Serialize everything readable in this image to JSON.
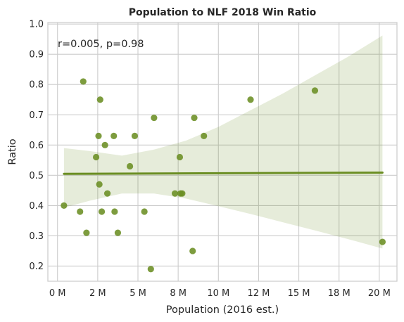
{
  "chart_data": {
    "type": "scatter",
    "title": "Population to NLF 2018 Win Ratio",
    "xlabel": "Population (2016 est.)",
    "ylabel": "Ratio",
    "annotation": "r=0.005, p=0.98",
    "xlim": [
      -0.6,
      21.1
    ],
    "ylim": [
      0.15,
      1.005
    ],
    "x_ticks": [
      0,
      2.5,
      5,
      7.5,
      10,
      12.5,
      15,
      17.5,
      20
    ],
    "x_tick_labels": [
      "0 M",
      "2 M",
      "5 M",
      "8 M",
      "10 M",
      "12 M",
      "15 M",
      "18 M",
      "20 M"
    ],
    "y_ticks": [
      0.2,
      0.3,
      0.4,
      0.5,
      0.6,
      0.7,
      0.8,
      0.9,
      1.0
    ],
    "y_tick_labels": [
      "0.2",
      "0.3",
      "0.4",
      "0.5",
      "0.6",
      "0.7",
      "0.8",
      "0.9",
      "1.0"
    ],
    "grid": true,
    "colors": {
      "points": "#6b8e23",
      "line": "#6b8e23",
      "band": "#6b8e23",
      "grid": "#cccccc",
      "frame": "#cccccc"
    },
    "points": [
      {
        "x": 0.4,
        "y": 0.4
      },
      {
        "x": 1.4,
        "y": 0.38
      },
      {
        "x": 1.6,
        "y": 0.81
      },
      {
        "x": 1.8,
        "y": 0.31
      },
      {
        "x": 2.4,
        "y": 0.56
      },
      {
        "x": 2.55,
        "y": 0.63
      },
      {
        "x": 2.6,
        "y": 0.47
      },
      {
        "x": 2.65,
        "y": 0.75
      },
      {
        "x": 2.75,
        "y": 0.38
      },
      {
        "x": 2.95,
        "y": 0.6
      },
      {
        "x": 3.1,
        "y": 0.44
      },
      {
        "x": 3.5,
        "y": 0.63
      },
      {
        "x": 3.55,
        "y": 0.38
      },
      {
        "x": 3.75,
        "y": 0.31
      },
      {
        "x": 4.5,
        "y": 0.53
      },
      {
        "x": 4.8,
        "y": 0.63
      },
      {
        "x": 5.4,
        "y": 0.38
      },
      {
        "x": 5.8,
        "y": 0.19
      },
      {
        "x": 6.0,
        "y": 0.69
      },
      {
        "x": 7.3,
        "y": 0.44
      },
      {
        "x": 7.6,
        "y": 0.56
      },
      {
        "x": 7.65,
        "y": 0.44
      },
      {
        "x": 7.75,
        "y": 0.44
      },
      {
        "x": 8.4,
        "y": 0.25
      },
      {
        "x": 8.5,
        "y": 0.69
      },
      {
        "x": 9.1,
        "y": 0.63
      },
      {
        "x": 12.0,
        "y": 0.75
      },
      {
        "x": 16.0,
        "y": 0.78
      },
      {
        "x": 20.2,
        "y": 0.28
      }
    ],
    "regression": {
      "x": [
        0.4,
        20.2
      ],
      "y": [
        0.505,
        0.509
      ]
    },
    "confidence_band": [
      {
        "x": 0.4,
        "lower": 0.393,
        "upper": 0.59
      },
      {
        "x": 2.0,
        "lower": 0.416,
        "upper": 0.58
      },
      {
        "x": 4.0,
        "lower": 0.44,
        "upper": 0.565
      },
      {
        "x": 6.0,
        "lower": 0.44,
        "upper": 0.585
      },
      {
        "x": 8.0,
        "lower": 0.423,
        "upper": 0.615
      },
      {
        "x": 10.0,
        "lower": 0.398,
        "upper": 0.66
      },
      {
        "x": 12.0,
        "lower": 0.372,
        "upper": 0.715
      },
      {
        "x": 14.0,
        "lower": 0.345,
        "upper": 0.77
      },
      {
        "x": 16.0,
        "lower": 0.318,
        "upper": 0.83
      },
      {
        "x": 18.0,
        "lower": 0.29,
        "upper": 0.89
      },
      {
        "x": 20.2,
        "lower": 0.258,
        "upper": 0.962
      }
    ]
  }
}
